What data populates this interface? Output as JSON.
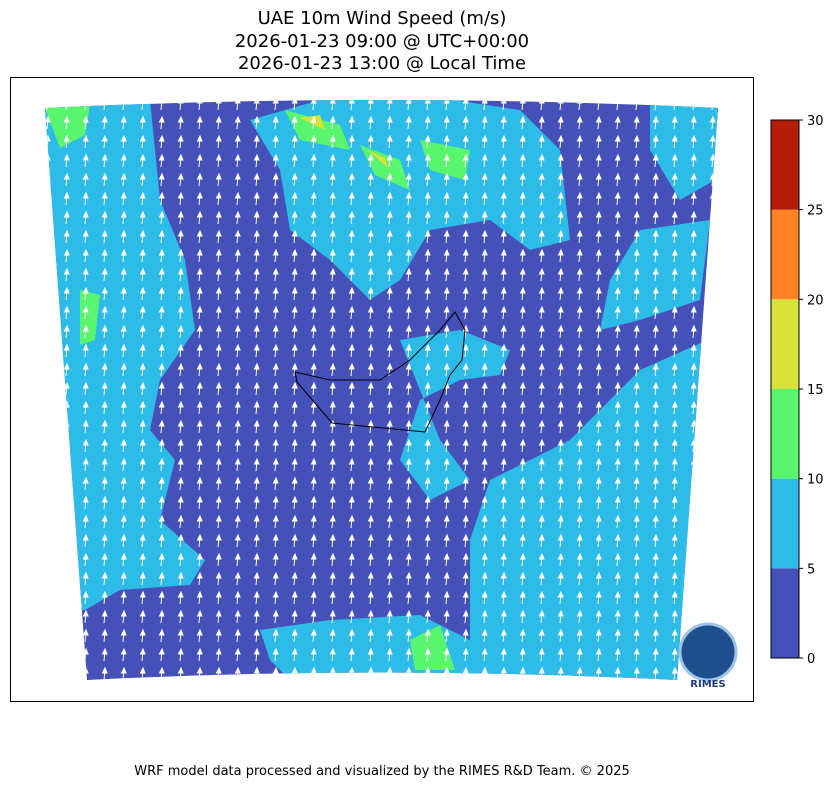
{
  "title": [
    "UAE 10m Wind Speed (m/s)",
    "2026-01-23 09:00 @ UTC+00:00",
    "2026-01-23 13:00 @ Local Time"
  ],
  "colorbar": {
    "ticks": [
      0,
      5,
      10,
      15,
      20,
      25,
      30
    ],
    "colors": [
      "#4650b9",
      "#2dbbe8",
      "#5af56e",
      "#d8e33a",
      "#fd8325",
      "#b41d08"
    ]
  },
  "logo": "RIMES",
  "footer": "WRF model data processed and visualized by the RIMES R&D Team. © 2025"
}
